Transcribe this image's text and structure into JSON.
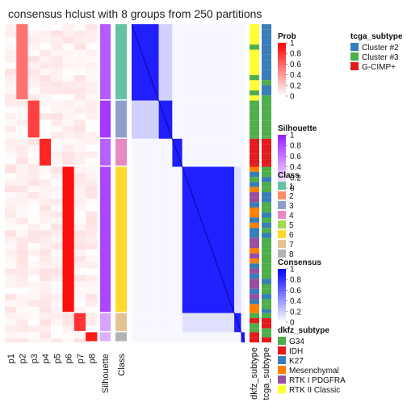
{
  "title": "consensus hclust with 8 groups from 250 partitions",
  "chart_data": {
    "type": "heatmap",
    "n_samples": 250,
    "left_columns": [
      "p1",
      "p2",
      "p3",
      "p4",
      "p5",
      "p6",
      "p7",
      "p8"
    ],
    "annotation_columns": [
      "Silhouette",
      "Class"
    ],
    "right_annotation_columns": [
      "dkfz_subtype",
      "tcga_subtype"
    ],
    "row_groups": [
      {
        "class": 1,
        "count": 60,
        "prob_col": 2,
        "prob": 0.55,
        "silhouette": 0.72
      },
      {
        "class": 3,
        "count": 30,
        "prob_col": 3,
        "prob": 0.75,
        "silhouette": 0.88
      },
      {
        "class": 4,
        "count": 22,
        "prob_col": 4,
        "prob": 0.85,
        "silhouette": 0.7
      },
      {
        "class": 6,
        "count": 115,
        "prob_col": 6,
        "prob": 0.95,
        "silhouette": 0.82
      },
      {
        "class": 7,
        "count": 15,
        "prob_col": 7,
        "prob": 0.8,
        "silhouette": 0.4
      },
      {
        "class": 8,
        "count": 8,
        "prob_col": 8,
        "prob": 0.9,
        "silhouette": 0.35
      }
    ],
    "legends": [
      {
        "title": "Prob",
        "kind": "gradient",
        "ticks": [
          "1",
          "0.8",
          "0.6",
          "0.4",
          "0.2",
          "0"
        ],
        "low": "#ffffff",
        "high": "#ff0000"
      },
      {
        "title": "Silhouette",
        "kind": "gradient",
        "ticks": [
          "1",
          "0.8",
          "0.6",
          "0.4",
          "0.2",
          "0"
        ],
        "low": "#ffffff",
        "high": "#9a1dff"
      },
      {
        "title": "Class",
        "kind": "discrete",
        "items": [
          {
            "label": "1",
            "color": "#66c2a5"
          },
          {
            "label": "2",
            "color": "#fc8d62"
          },
          {
            "label": "3",
            "color": "#8da0cb"
          },
          {
            "label": "4",
            "color": "#e78ac3"
          },
          {
            "label": "5",
            "color": "#a6d854"
          },
          {
            "label": "6",
            "color": "#ffd92f"
          },
          {
            "label": "7",
            "color": "#e5c494"
          },
          {
            "label": "8",
            "color": "#b3b3b3"
          }
        ]
      },
      {
        "title": "Consensus",
        "kind": "gradient",
        "ticks": [
          "1",
          "0.8",
          "0.6",
          "0.4",
          "0.2",
          "0"
        ],
        "low": "#ffffff",
        "high": "#0000ff"
      },
      {
        "title": "dkfz_subtype",
        "kind": "discrete",
        "items": [
          {
            "label": "G34",
            "color": "#4daf4a"
          },
          {
            "label": "IDH",
            "color": "#e41a1c"
          },
          {
            "label": "K27",
            "color": "#377eb8"
          },
          {
            "label": "Mesenchymal",
            "color": "#ff7f00"
          },
          {
            "label": "RTK I PDGFRA",
            "color": "#984ea3"
          },
          {
            "label": "RTK II Classic",
            "color": "#ffff33"
          }
        ]
      },
      {
        "title": "tcga_subtype",
        "kind": "discrete",
        "items": [
          {
            "label": "Cluster #2",
            "color": "#377eb8"
          },
          {
            "label": "Cluster #3",
            "color": "#4daf4a"
          },
          {
            "label": "G-CIMP+",
            "color": "#e41a1c"
          }
        ]
      }
    ]
  }
}
